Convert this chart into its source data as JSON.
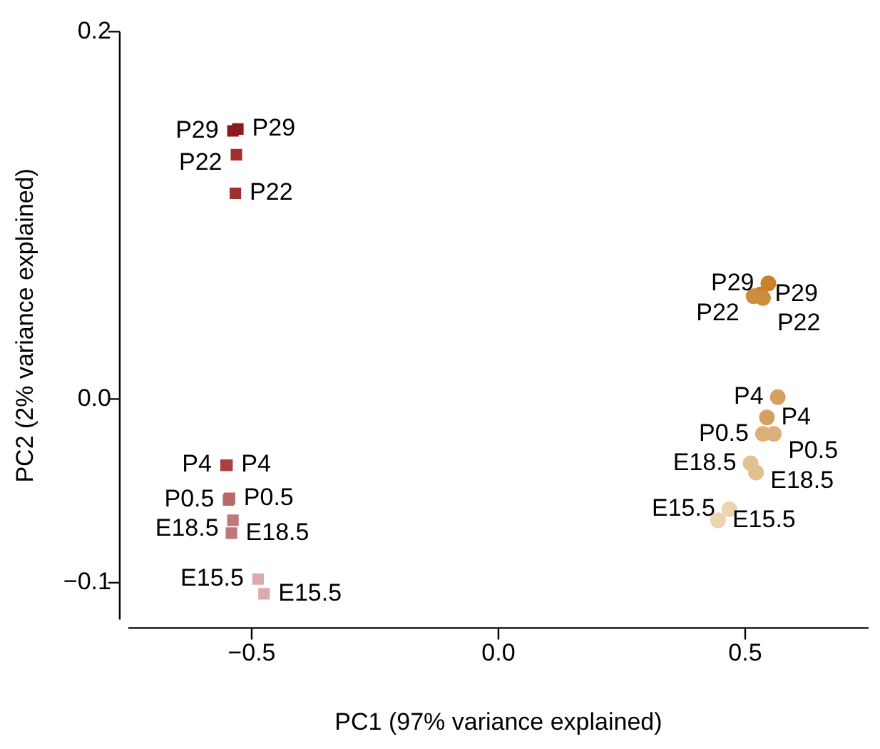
{
  "chart_data": {
    "type": "scatter",
    "xlabel": "PC1 (97% variance explained)",
    "ylabel": "PC2 (2% variance explained)",
    "xlim": [
      -0.75,
      0.75
    ],
    "ylim": [
      -0.12,
      0.2
    ],
    "xticks": [
      {
        "value": -0.5,
        "label": "−0.5"
      },
      {
        "value": 0,
        "label": "0.0"
      },
      {
        "value": 0.5,
        "label": "0.5"
      }
    ],
    "yticks": [
      {
        "value": -0.1,
        "label": "−0.1"
      },
      {
        "value": 0,
        "label": "0.0"
      },
      {
        "value": 0.2,
        "label": "0.2"
      }
    ],
    "grid": false,
    "legend": false,
    "series": [
      {
        "marker": "square",
        "x": [
          -0.538,
          -0.528,
          -0.531,
          -0.533,
          -0.552,
          -0.55,
          -0.547,
          -0.545,
          -0.538,
          -0.541,
          -0.487,
          -0.475
        ],
        "values": [
          0.146,
          0.147,
          0.133,
          0.112,
          -0.036,
          -0.036,
          -0.055,
          -0.054,
          -0.066,
          -0.073,
          -0.098,
          -0.106
        ],
        "value_labels": [
          "P29",
          "P29",
          "P22",
          "P22",
          "P4",
          "P4",
          "P0.5",
          "P0.5",
          "E18.5",
          "E18.5",
          "E15.5",
          "E15.5"
        ],
        "colors": [
          "#8b1a1a",
          "#8b1a1a",
          "#a0302e",
          "#a0302e",
          "#a84040",
          "#a84040",
          "#b86a6a",
          "#b86a6a",
          "#c07878",
          "#c07878",
          "#dcaaaa",
          "#dcaaaa"
        ]
      },
      {
        "marker": "circle",
        "x": [
          0.547,
          0.531,
          0.517,
          0.536,
          0.566,
          0.544,
          0.536,
          0.558,
          0.511,
          0.522,
          0.468,
          0.445
        ],
        "values": [
          0.063,
          0.057,
          0.056,
          0.055,
          0.001,
          -0.01,
          -0.019,
          -0.019,
          -0.035,
          -0.04,
          -0.06,
          -0.066
        ],
        "value_labels": [
          "P29",
          "P29",
          "P22",
          "P22",
          "P4",
          "P4",
          "P0.5",
          "P0.5",
          "E18.5",
          "E18.5",
          "E15.5",
          "E15.5"
        ],
        "colors": [
          "#c8822a",
          "#c8822a",
          "#cc8d3c",
          "#cc8d3c",
          "#d4a060",
          "#d4a060",
          "#dbb07a",
          "#dbb07a",
          "#e2c090",
          "#e2c090",
          "#ecd4ae",
          "#ecd4ae"
        ]
      }
    ]
  }
}
